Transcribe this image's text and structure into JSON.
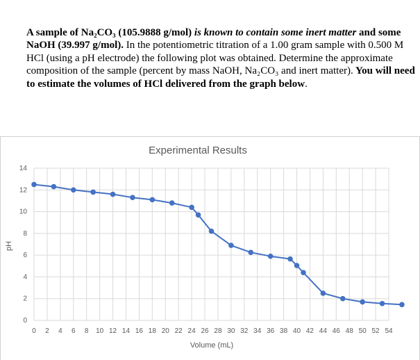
{
  "problem": {
    "s1": "A sample of Na₂CO₃ (105.9888 g/mol)",
    "s2": " is known to contain some inert matter",
    "s3": " and some NaOH (39.997 g/mol).",
    "s4": "  In the potentiometric titration of a 1.00 gram sample with 0.500 M HCl (using a pH electrode) the following plot was obtained. Determine the approximate composition of the sample (percent by mass NaOH, Na₂CO₃ and inert matter).",
    "s5": "  You will need to estimate the volumes of HCl delivered from the graph below",
    "s6": "."
  },
  "chart_data": {
    "type": "line",
    "title": "Experimental Results",
    "xlabel": "Volume (mL)",
    "ylabel": "pH",
    "xlim": [
      0,
      54
    ],
    "ylim": [
      0,
      14
    ],
    "xticks": [
      0,
      2,
      4,
      6,
      8,
      10,
      12,
      14,
      16,
      18,
      20,
      22,
      24,
      26,
      28,
      30,
      32,
      34,
      36,
      38,
      40,
      42,
      44,
      46,
      48,
      50,
      52,
      54
    ],
    "yticks": [
      0,
      2,
      4,
      6,
      8,
      10,
      12,
      14
    ],
    "grid": true,
    "series": [
      {
        "color": "#4472c4",
        "x": [
          0,
          3,
          6,
          9,
          12,
          15,
          18,
          21,
          24,
          25,
          27,
          30,
          33,
          36,
          39,
          40,
          41,
          44,
          47,
          50,
          53,
          56
        ],
        "y": [
          12.5,
          12.3,
          12.0,
          11.8,
          11.6,
          11.3,
          11.1,
          10.8,
          10.4,
          9.7,
          8.2,
          6.9,
          6.25,
          5.9,
          5.65,
          5.05,
          4.4,
          2.5,
          2.0,
          1.7,
          1.55,
          1.45
        ]
      }
    ],
    "colors": {
      "line": "#4472c4",
      "grid": "#d9d9d9",
      "text": "#595959"
    }
  }
}
